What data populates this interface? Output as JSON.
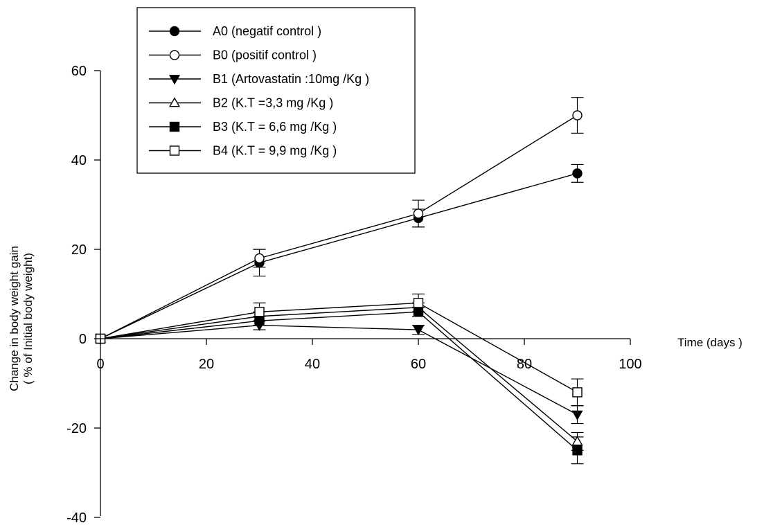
{
  "chart_data": {
    "type": "line",
    "xlabel": "Time (days )",
    "ylabel_line1": "Change in body weight gain",
    "ylabel_line2": "( % of Initial body weight)",
    "xlim": [
      0,
      100
    ],
    "ylim": [
      -40,
      60
    ],
    "xticks": [
      0,
      20,
      40,
      60,
      80,
      100
    ],
    "yticks": [
      -40,
      -20,
      0,
      20,
      40,
      60
    ],
    "x": [
      0,
      30,
      60,
      90
    ],
    "legend_position": "top-left",
    "series": [
      {
        "name": "A0 (negatif control )",
        "marker": "circle",
        "filled": true,
        "values": [
          0,
          17,
          27,
          37
        ],
        "errors": [
          0,
          3,
          2,
          2
        ]
      },
      {
        "name": "B0 (positif control )",
        "marker": "circle",
        "filled": false,
        "values": [
          0,
          18,
          28,
          50
        ],
        "errors": [
          0,
          2,
          3,
          4
        ]
      },
      {
        "name": "B1 (Artovastatin :10mg /Kg )",
        "marker": "triangle-down",
        "filled": true,
        "values": [
          0,
          3,
          2,
          -17
        ],
        "errors": [
          0,
          1,
          1,
          2
        ]
      },
      {
        "name": "B2 (K.T =3,3 mg /Kg )",
        "marker": "triangle-up",
        "filled": false,
        "values": [
          0,
          5,
          7,
          -23
        ],
        "errors": [
          0,
          1,
          1,
          2
        ]
      },
      {
        "name": "B3 (K.T = 6,6 mg /Kg )",
        "marker": "square",
        "filled": true,
        "values": [
          0,
          4,
          6,
          -25
        ],
        "errors": [
          0,
          1,
          1,
          3
        ]
      },
      {
        "name": "B4  (K.T = 9,9 mg /Kg )",
        "marker": "square",
        "filled": false,
        "values": [
          0,
          6,
          8,
          -12
        ],
        "errors": [
          0,
          2,
          2,
          3
        ]
      }
    ]
  }
}
